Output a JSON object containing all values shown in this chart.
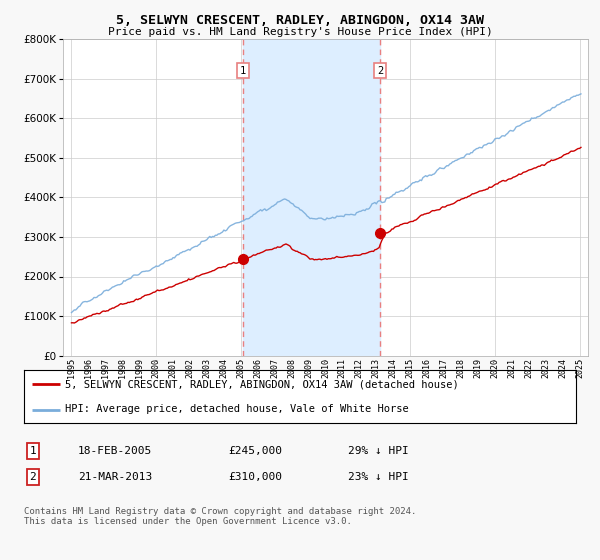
{
  "title": "5, SELWYN CRESCENT, RADLEY, ABINGDON, OX14 3AW",
  "subtitle": "Price paid vs. HM Land Registry's House Price Index (HPI)",
  "legend_line1": "5, SELWYN CRESCENT, RADLEY, ABINGDON, OX14 3AW (detached house)",
  "legend_line2": "HPI: Average price, detached house, Vale of White Horse",
  "footer": "Contains HM Land Registry data © Crown copyright and database right 2024.\nThis data is licensed under the Open Government Licence v3.0.",
  "sale1_label": "1",
  "sale1_date": "18-FEB-2005",
  "sale1_price": "£245,000",
  "sale1_hpi": "29% ↓ HPI",
  "sale2_label": "2",
  "sale2_date": "21-MAR-2013",
  "sale2_price": "£310,000",
  "sale2_hpi": "23% ↓ HPI",
  "sale1_year": 2005.12,
  "sale2_year": 2013.22,
  "sale1_value": 245000,
  "sale2_value": 310000,
  "price_color": "#cc0000",
  "hpi_color": "#7aaddb",
  "vline_color": "#e88080",
  "shade_color": "#ddeeff",
  "plot_bg": "#ffffff",
  "ylim": [
    0,
    800000
  ],
  "xlim_start": 1994.5,
  "xlim_end": 2025.5,
  "yticks": [
    0,
    100000,
    200000,
    300000,
    400000,
    500000,
    600000,
    700000,
    800000
  ],
  "xticks": [
    1995,
    1996,
    1997,
    1998,
    1999,
    2000,
    2001,
    2002,
    2003,
    2004,
    2005,
    2006,
    2007,
    2008,
    2009,
    2010,
    2011,
    2012,
    2013,
    2014,
    2015,
    2016,
    2017,
    2018,
    2019,
    2020,
    2021,
    2022,
    2023,
    2024,
    2025
  ]
}
